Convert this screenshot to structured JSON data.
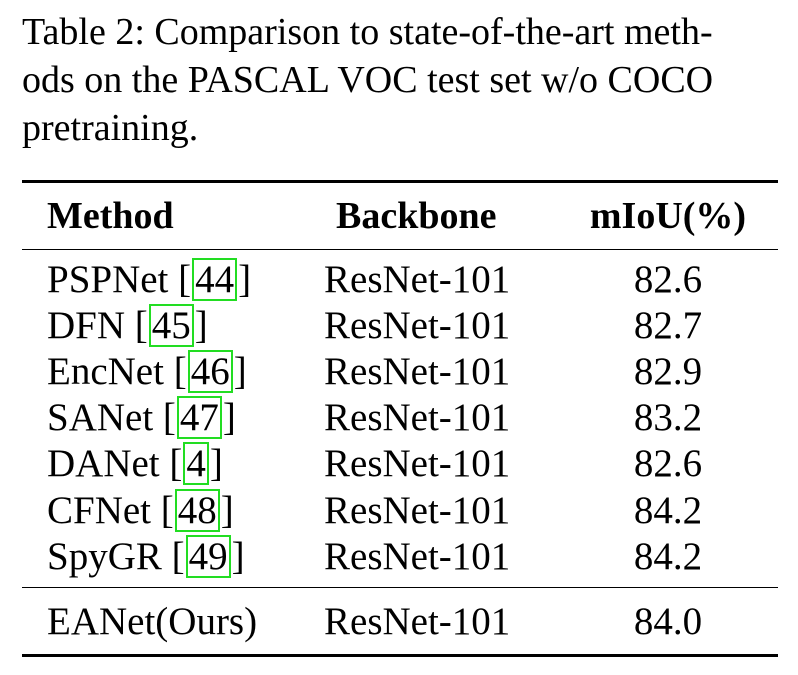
{
  "caption": {
    "line1": "Table 2: Comparison to state-of-the-art meth-",
    "line2": "ods on the PASCAL VOC test set w/o COCO",
    "line3": "pretraining."
  },
  "table": {
    "headers": [
      "Method",
      "Backbone",
      "mIoU(%)"
    ],
    "rows": [
      {
        "method": "PSPNet",
        "ref": "44",
        "backbone": "ResNet-101",
        "miou": "82.6"
      },
      {
        "method": "DFN",
        "ref": "45",
        "backbone": "ResNet-101",
        "miou": "82.7"
      },
      {
        "method": "EncNet",
        "ref": "46",
        "backbone": "ResNet-101",
        "miou": "82.9"
      },
      {
        "method": "SANet",
        "ref": "47",
        "backbone": "ResNet-101",
        "miou": "83.2"
      },
      {
        "method": "DANet",
        "ref": "4",
        "backbone": "ResNet-101",
        "miou": "82.6"
      },
      {
        "method": "CFNet",
        "ref": "48",
        "backbone": "ResNet-101",
        "miou": "84.2"
      },
      {
        "method": "SpyGR",
        "ref": "49",
        "backbone": "ResNet-101",
        "miou": "84.2"
      }
    ],
    "ours": {
      "method": "EANet(Ours)",
      "backbone": "ResNet-101",
      "miou": "84.0"
    }
  },
  "colors": {
    "citation_box": "#22dd22"
  }
}
